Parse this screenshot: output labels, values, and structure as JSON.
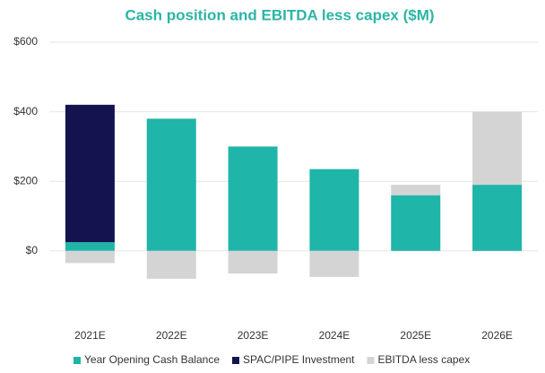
{
  "chart_data": {
    "type": "stacked_bar",
    "title": "Cash position and EBITDA less capex ($M)",
    "categories": [
      "2021E",
      "2022E",
      "2023E",
      "2024E",
      "2025E",
      "2026E"
    ],
    "series": [
      {
        "name": "Year Opening Cash Balance",
        "color": "#1fb5a8",
        "values": [
          25,
          380,
          300,
          235,
          160,
          190
        ]
      },
      {
        "name": "SPAC/PIPE Investment",
        "color": "#15134f",
        "values": [
          395,
          null,
          null,
          null,
          null,
          null
        ]
      },
      {
        "name": "EBITDA less capex",
        "color": "#d4d4d4",
        "values": [
          -35,
          -80,
          -65,
          -75,
          30,
          210
        ]
      }
    ],
    "ylim": [
      -150,
      600
    ],
    "yticks": [
      {
        "value": 0,
        "label": "$0"
      },
      {
        "value": 200,
        "label": "$200"
      },
      {
        "value": 400,
        "label": "$400"
      },
      {
        "value": 600,
        "label": "$600"
      }
    ],
    "grid": true,
    "legend": "bottom"
  }
}
